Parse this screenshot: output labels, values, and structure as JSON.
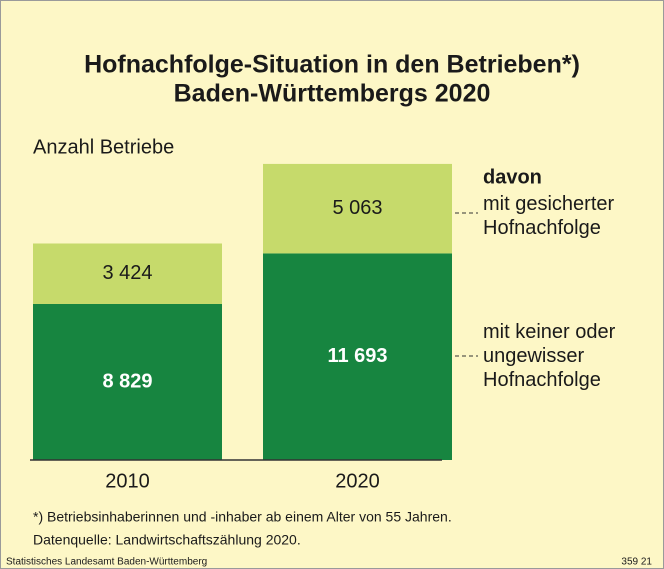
{
  "chart_data": {
    "type": "stacked_bar",
    "title": [
      "Hofnachfolge-Situation in den Betrieben*)",
      "Baden-Württembergs 2020"
    ],
    "y_label": "Anzahl Betriebe",
    "categories": [
      "2010",
      "2020"
    ],
    "legend_title": "davon",
    "series": [
      {
        "name": "mit keiner oder ungewisser Hofnachfolge",
        "color": "#178540",
        "values": [
          8829,
          11693
        ],
        "value_labels": [
          "8 829",
          "11 693"
        ]
      },
      {
        "name": "mit gesicherter Hofnachfolge",
        "color": "#c6da6b",
        "values": [
          3424,
          5063
        ],
        "value_labels": [
          "3 424",
          "5 063"
        ]
      }
    ],
    "footnote": "*) Betriebsinhaberinnen und -inhaber ab einem Alter von 55 Jahren.",
    "source": "Datenquelle: Landwirtschaftszählung 2020.",
    "publisher": "Statistisches Landesamt Baden-Württemberg",
    "code": "359 21"
  }
}
